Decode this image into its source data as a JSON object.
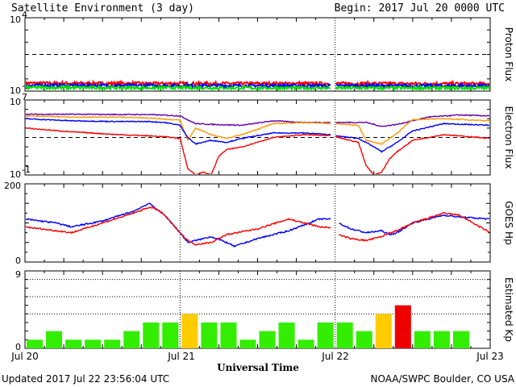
{
  "header": {
    "title": "Satellite Environment (3 day)",
    "begin": "Begin:  2017 Jul 20 0000 UTC"
  },
  "footer": {
    "updated": "Updated 2017 Jul 22 23:56:04 UTC",
    "credit": "NOAA/SWPC Boulder, CO USA"
  },
  "x_axis": {
    "title": "Universal Time",
    "ticks": [
      "Jul 20",
      "Jul 21",
      "Jul 22",
      "Jul 23"
    ],
    "range_days": [
      0,
      3
    ]
  },
  "chart_data": [
    {
      "type": "line",
      "ylabel": "Proton Flux",
      "yscale": "log",
      "ylim": [
        0.01,
        10000
      ],
      "ytick_base": [
        "10",
        "10"
      ],
      "ytick_exp": [
        "-2",
        "4"
      ],
      "threshold": 10,
      "gap_days": [
        1.97,
        2.0
      ],
      "series": [
        {
          "color": "#ff0000",
          "x": [
            0,
            0.5,
            1.0,
            1.5,
            1.97,
            2.0,
            2.5,
            3.0
          ],
          "y": [
            0.045,
            0.043,
            0.042,
            0.042,
            0.042,
            0.042,
            0.041,
            0.04
          ]
        },
        {
          "color": "#0000ff",
          "x": [
            0,
            0.5,
            1.0,
            1.5,
            1.97,
            2.0,
            2.5,
            3.0
          ],
          "y": [
            0.03,
            0.029,
            0.028,
            0.028,
            0.028,
            0.028,
            0.027,
            0.027
          ]
        },
        {
          "color": "#00dd00",
          "x": [
            0,
            0.5,
            1.0,
            1.5,
            1.97,
            2.0,
            2.5,
            3.0
          ],
          "y": [
            0.02,
            0.019,
            0.019,
            0.018,
            0.018,
            0.018,
            0.018,
            0.018
          ]
        }
      ]
    },
    {
      "type": "line",
      "ylabel": "Electron Flux",
      "yscale": "log",
      "ylim": [
        0.1,
        10000000
      ],
      "ytick_base": [
        "10",
        "10"
      ],
      "ytick_exp": [
        "7",
        "-1"
      ],
      "threshold": 1000,
      "gap_days": [
        1.97,
        2.0
      ],
      "series": [
        {
          "color": "#6600aa",
          "x": [
            0,
            0.3,
            0.6,
            0.8,
            1.0,
            1.1,
            1.2,
            1.4,
            1.6,
            1.8,
            1.97,
            2.0,
            2.2,
            2.3,
            2.4,
            2.5,
            2.6,
            2.8,
            3.0
          ],
          "y": [
            300000,
            300000,
            280000,
            280000,
            200000,
            30000,
            25000,
            20000,
            60000,
            40000,
            40000,
            40000,
            40000,
            15000,
            25000,
            60000,
            150000,
            250000,
            200000
          ]
        },
        {
          "color": "#ff9900",
          "x": [
            0,
            0.3,
            0.6,
            0.8,
            1.0,
            1.05,
            1.1,
            1.2,
            1.3,
            1.4,
            1.6,
            1.8,
            1.97,
            2.0,
            2.15,
            2.2,
            2.3,
            2.4,
            2.5,
            2.7,
            3.0
          ],
          "y": [
            200000,
            150000,
            150000,
            120000,
            70000,
            500,
            10000,
            2000,
            800,
            2000,
            30000,
            40000,
            30000,
            30000,
            20000,
            500,
            200,
            3000,
            80000,
            100000,
            60000
          ]
        },
        {
          "color": "#0000ff",
          "x": [
            0,
            0.3,
            0.6,
            0.8,
            0.9,
            1.0,
            1.05,
            1.1,
            1.2,
            1.3,
            1.4,
            1.6,
            1.8,
            1.97,
            2.0,
            2.15,
            2.25,
            2.3,
            2.4,
            2.5,
            2.7,
            3.0
          ],
          "y": [
            100000,
            60000,
            50000,
            50000,
            40000,
            20000,
            1000,
            200,
            500,
            300,
            800,
            3000,
            3000,
            2000,
            1500,
            800,
            100,
            30,
            300,
            5000,
            30000,
            20000
          ]
        },
        {
          "color": "#ff0000",
          "x": [
            0,
            0.3,
            0.6,
            0.8,
            0.9,
            1.0,
            1.05,
            1.1,
            1.15,
            1.2,
            1.25,
            1.3,
            1.4,
            1.6,
            1.8,
            1.97,
            2.0,
            2.15,
            2.2,
            2.25,
            2.3,
            2.35,
            2.4,
            2.5,
            2.7,
            3.0
          ],
          "y": [
            10000,
            4000,
            2000,
            1500,
            1200,
            800,
            0.5,
            0.1,
            0.2,
            0.1,
            10,
            50,
            100,
            1000,
            2000,
            1500,
            1200,
            300,
            1,
            0.1,
            0.2,
            5,
            30,
            500,
            2000,
            800
          ]
        }
      ]
    },
    {
      "type": "line",
      "ylabel": "GOES Hp",
      "yscale": "linear",
      "ylim": [
        0,
        200
      ],
      "yticks": [
        "0",
        "200"
      ],
      "gap_days": [
        1.97,
        2.02
      ],
      "series": [
        {
          "color": "#0000ff",
          "x": [
            0,
            0.2,
            0.3,
            0.5,
            0.7,
            0.8,
            0.9,
            1.0,
            1.05,
            1.1,
            1.2,
            1.3,
            1.35,
            1.5,
            1.7,
            1.9,
            1.97,
            2.02,
            2.1,
            2.2,
            2.3,
            2.35,
            2.4,
            2.5,
            2.7,
            2.8,
            3.0
          ],
          "y": [
            110,
            100,
            90,
            105,
            130,
            150,
            120,
            75,
            50,
            55,
            65,
            50,
            40,
            60,
            80,
            110,
            110,
            100,
            85,
            75,
            80,
            70,
            75,
            100,
            120,
            115,
            110
          ]
        },
        {
          "color": "#ff0000",
          "x": [
            0,
            0.2,
            0.3,
            0.5,
            0.7,
            0.8,
            0.85,
            0.9,
            1.0,
            1.05,
            1.1,
            1.2,
            1.3,
            1.5,
            1.7,
            1.9,
            1.97,
            2.02,
            2.1,
            2.2,
            2.3,
            2.35,
            2.4,
            2.5,
            2.7,
            2.8,
            3.0
          ],
          "y": [
            90,
            80,
            75,
            100,
            125,
            140,
            135,
            120,
            75,
            55,
            45,
            50,
            70,
            85,
            110,
            90,
            88,
            70,
            60,
            55,
            65,
            75,
            80,
            100,
            125,
            120,
            75
          ]
        }
      ]
    },
    {
      "type": "bar",
      "ylabel": "Estimated Kp",
      "ylim": [
        0,
        9
      ],
      "yticks": [
        "0",
        "9"
      ],
      "gridlines": [
        4,
        6,
        8
      ],
      "colors": {
        "green": "#33ee00",
        "yellow": "#ffcc00",
        "red": "#ee0000"
      },
      "values": [
        1,
        2,
        1,
        1,
        1,
        2,
        3,
        3,
        4,
        3,
        3,
        1,
        2,
        3,
        1,
        3,
        3,
        2,
        4,
        5,
        2,
        2,
        2,
        0
      ],
      "bar_colors": [
        "green",
        "green",
        "green",
        "green",
        "green",
        "green",
        "green",
        "green",
        "yellow",
        "green",
        "green",
        "green",
        "green",
        "green",
        "green",
        "green",
        "green",
        "green",
        "yellow",
        "red",
        "green",
        "green",
        "green",
        "green"
      ]
    }
  ]
}
